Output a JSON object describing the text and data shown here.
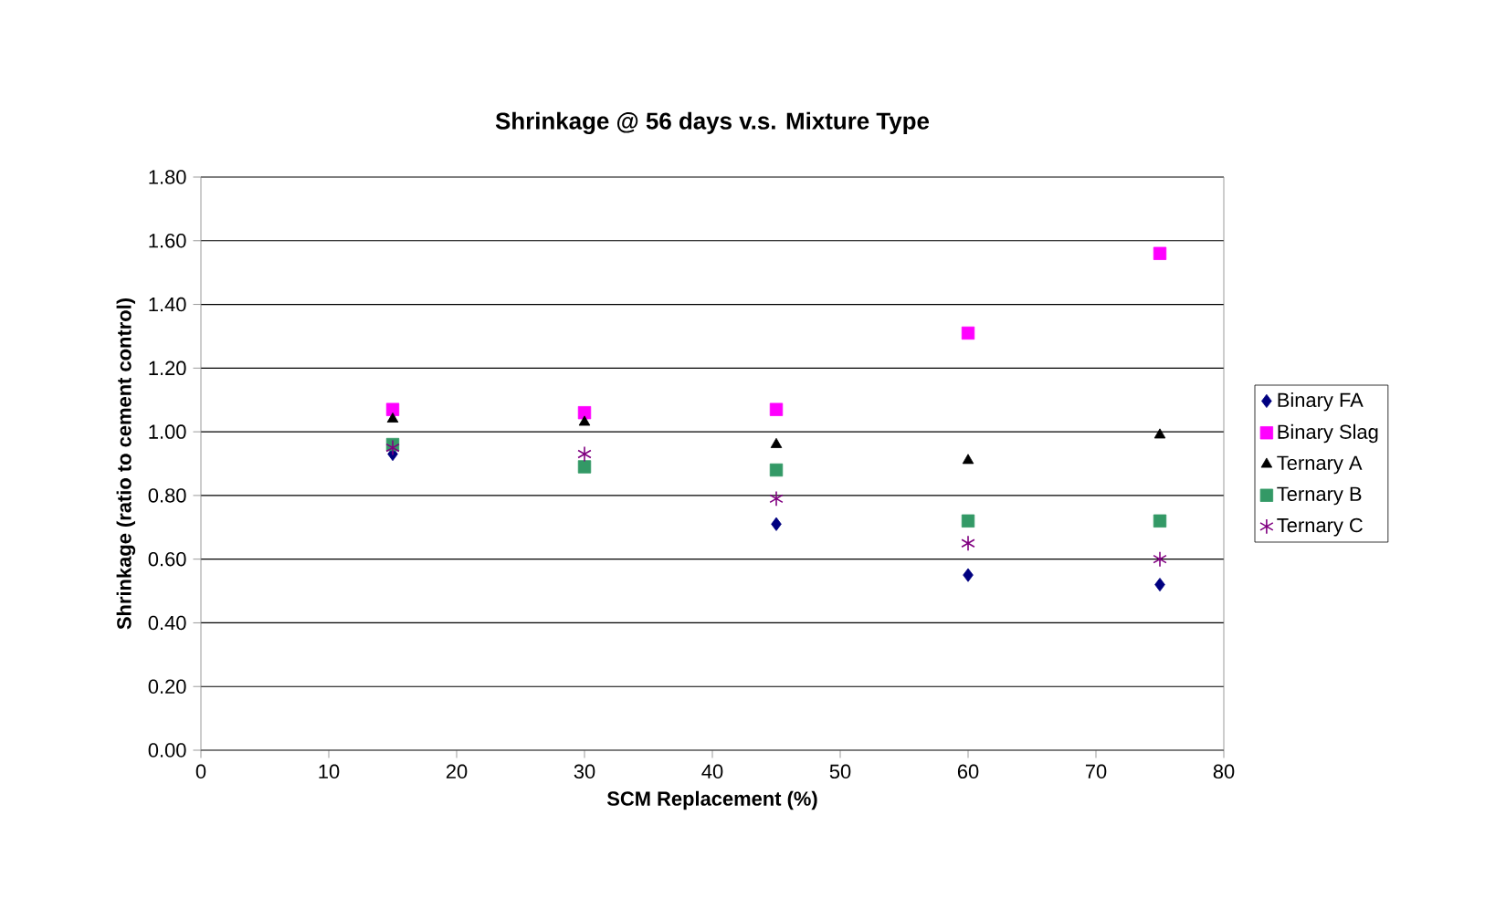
{
  "chart_data": {
    "type": "scatter",
    "title": "Shrinkage @ 56 days v.s. Mixture Type",
    "xlabel": "SCM Replacement (%)",
    "ylabel": "Shrinkage (ratio to cement control)",
    "x": [
      15,
      30,
      45,
      60,
      75
    ],
    "series": [
      {
        "name": "Binary FA",
        "color": "#000080",
        "marker": "diamond",
        "values": [
          0.93,
          null,
          0.71,
          0.55,
          0.52
        ]
      },
      {
        "name": "Binary Slag",
        "color": "#ff00ff",
        "marker": "square",
        "values": [
          1.07,
          1.06,
          1.07,
          1.31,
          1.56
        ]
      },
      {
        "name": "Ternary A",
        "color": "#000000",
        "marker": "triangle",
        "values": [
          1.04,
          1.03,
          0.96,
          0.91,
          0.99
        ]
      },
      {
        "name": "Ternary B",
        "color": "#339966",
        "marker": "square",
        "values": [
          0.96,
          0.89,
          0.88,
          0.72,
          0.72
        ]
      },
      {
        "name": "Ternary C",
        "color": "#800080",
        "marker": "cross",
        "values": [
          0.95,
          0.93,
          0.79,
          0.65,
          0.6
        ]
      }
    ],
    "xlim": [
      0,
      80
    ],
    "xticks": [
      0,
      10,
      20,
      30,
      40,
      50,
      60,
      70,
      80
    ],
    "ylim": [
      0,
      1.8
    ],
    "yticks": [
      {
        "value": 0,
        "label": "0.00"
      },
      {
        "value": 0.2,
        "label": "0.20"
      },
      {
        "value": 0.4,
        "label": "0.40"
      },
      {
        "value": 0.6,
        "label": "0.60"
      },
      {
        "value": 0.8,
        "label": "0.80"
      },
      {
        "value": 1.0,
        "label": "1.00"
      },
      {
        "value": 1.2,
        "label": "1.20"
      },
      {
        "value": 1.4,
        "label": "1.40"
      },
      {
        "value": 1.6,
        "label": "1.60"
      },
      {
        "value": 1.8,
        "label": "1.80"
      }
    ],
    "grid": "y",
    "legend": "right"
  }
}
